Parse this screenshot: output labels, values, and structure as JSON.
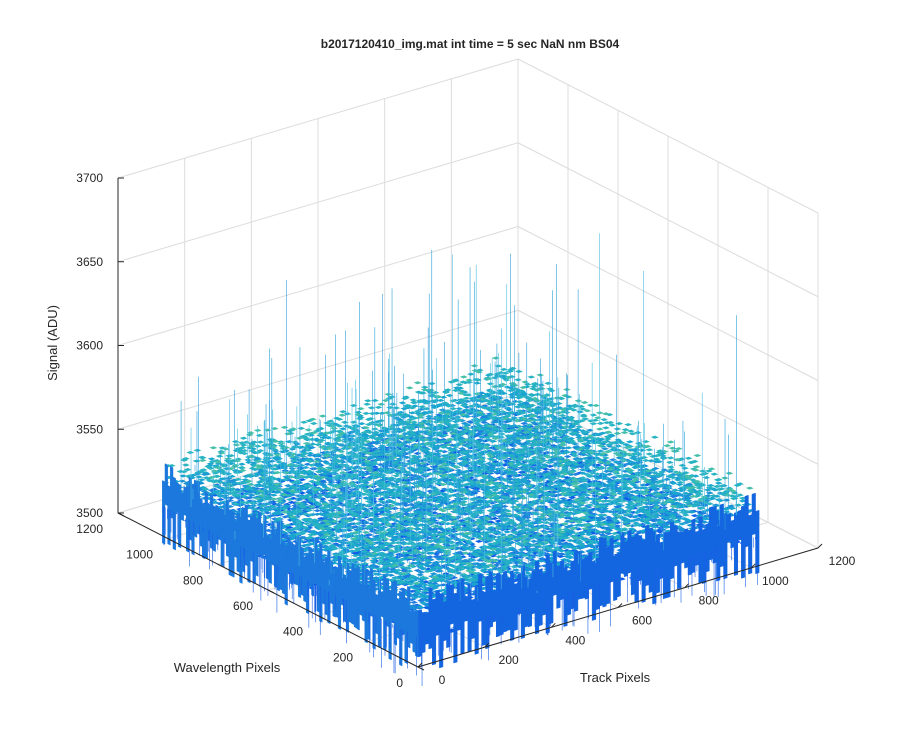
{
  "chart_data": {
    "type": "surface",
    "title": "b2017120410_img.mat int time = 5 sec  NaN nm BS04",
    "xlabel": "Track Pixels",
    "ylabel": "Wavelength Pixels",
    "zlabel": "Signal (ADU)",
    "xlim": [
      0,
      1200
    ],
    "ylim": [
      0,
      1200
    ],
    "zlim": [
      3500,
      3700
    ],
    "x_ticks": [
      "0",
      "200",
      "400",
      "600",
      "800",
      "1000",
      "1200"
    ],
    "y_ticks": [
      "0",
      "200",
      "400",
      "600",
      "800",
      "1000",
      "1200"
    ],
    "z_ticks": [
      "3500",
      "3550",
      "3600",
      "3650",
      "3700"
    ],
    "surface": {
      "x_extent": [
        1,
        1024
      ],
      "y_extent": [
        1,
        1024
      ],
      "mean": 3530,
      "noise_range": [
        3510,
        3560
      ],
      "occasional_spikes_up_to": 3660
    },
    "grid": true,
    "colormap": "parula"
  }
}
